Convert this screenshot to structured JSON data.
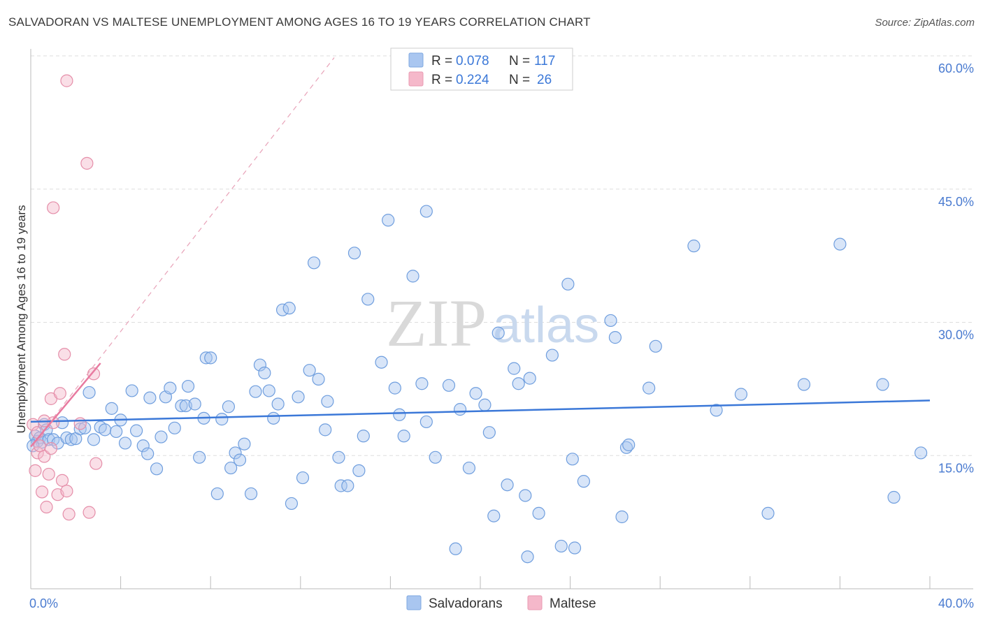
{
  "header": {
    "title": "SALVADORAN VS MALTESE UNEMPLOYMENT AMONG AGES 16 TO 19 YEARS CORRELATION CHART",
    "source": "Source: ZipAtlas.com"
  },
  "watermark": {
    "zip": "ZIP",
    "atlas": "atlas"
  },
  "legend": {
    "rows": [
      {
        "r_label": "R =",
        "r_value": "0.078",
        "n_label": "N =",
        "n_value": "117",
        "color": "#a9c6f0"
      },
      {
        "r_label": "R =",
        "r_value": "0.224",
        "n_label": "N =",
        "n_value": "26",
        "color": "#f5b8ca"
      }
    ]
  },
  "bottom_legend": {
    "salvadorans": "Salvadorans",
    "maltese": "Maltese"
  },
  "colors": {
    "blue": "#3b78d8",
    "blue_fill": "#a9c6f0",
    "pink": "#e87aa0",
    "pink_fill": "#f5b8ca",
    "grid": "#dddddd"
  },
  "chart_data": {
    "type": "scatter",
    "xlabel": "",
    "ylabel": "Unemployment Among Ages 16 to 19 years",
    "xlim": [
      0,
      40
    ],
    "ylim": [
      0,
      60
    ],
    "x_tick_labels": [
      "0.0%",
      "40.0%"
    ],
    "y_ticks": [
      15,
      30,
      45,
      60
    ],
    "y_tick_labels": [
      "15.0%",
      "30.0%",
      "45.0%",
      "60.0%"
    ],
    "grid": true,
    "series": [
      {
        "name": "Salvadorans",
        "r": 0.078,
        "n": 117,
        "trend": {
          "x": [
            0,
            40
          ],
          "y": [
            18.8,
            21.2
          ]
        },
        "points": [
          [
            0.2,
            17.2
          ],
          [
            0.3,
            16.6
          ],
          [
            0.4,
            17.0
          ],
          [
            0.5,
            16.5
          ],
          [
            0.6,
            18.5
          ],
          [
            0.7,
            17.9
          ],
          [
            0.8,
            16.8
          ],
          [
            1.0,
            16.8
          ],
          [
            1.2,
            16.4
          ],
          [
            1.4,
            18.7
          ],
          [
            1.6,
            17.0
          ],
          [
            1.8,
            16.8
          ],
          [
            2.0,
            16.9
          ],
          [
            2.2,
            18.0
          ],
          [
            2.4,
            18.1
          ],
          [
            2.6,
            22.1
          ],
          [
            2.8,
            16.8
          ],
          [
            3.1,
            18.2
          ],
          [
            3.3,
            17.9
          ],
          [
            3.6,
            20.3
          ],
          [
            3.8,
            17.7
          ],
          [
            4.0,
            19.0
          ],
          [
            4.2,
            16.4
          ],
          [
            4.5,
            22.3
          ],
          [
            4.7,
            17.8
          ],
          [
            5.0,
            16.1
          ],
          [
            5.2,
            15.2
          ],
          [
            5.3,
            21.5
          ],
          [
            5.6,
            13.5
          ],
          [
            5.8,
            17.1
          ],
          [
            6.0,
            21.6
          ],
          [
            6.2,
            22.6
          ],
          [
            6.4,
            18.1
          ],
          [
            6.7,
            20.6
          ],
          [
            6.9,
            20.6
          ],
          [
            7.0,
            22.8
          ],
          [
            7.3,
            20.8
          ],
          [
            7.5,
            14.8
          ],
          [
            7.7,
            19.2
          ],
          [
            7.8,
            26.0
          ],
          [
            8.0,
            26.0
          ],
          [
            8.3,
            10.7
          ],
          [
            8.5,
            19.1
          ],
          [
            8.8,
            20.5
          ],
          [
            8.9,
            13.6
          ],
          [
            9.1,
            15.3
          ],
          [
            9.3,
            14.5
          ],
          [
            9.5,
            16.3
          ],
          [
            9.8,
            10.7
          ],
          [
            10.0,
            22.2
          ],
          [
            10.2,
            25.2
          ],
          [
            10.4,
            24.3
          ],
          [
            10.6,
            22.3
          ],
          [
            10.8,
            19.2
          ],
          [
            11.0,
            20.8
          ],
          [
            11.2,
            31.4
          ],
          [
            11.5,
            31.6
          ],
          [
            11.6,
            9.6
          ],
          [
            11.9,
            21.6
          ],
          [
            12.1,
            12.5
          ],
          [
            12.4,
            24.6
          ],
          [
            12.6,
            36.7
          ],
          [
            12.8,
            23.6
          ],
          [
            13.1,
            17.9
          ],
          [
            13.2,
            21.1
          ],
          [
            13.7,
            14.8
          ],
          [
            13.8,
            11.6
          ],
          [
            14.1,
            11.6
          ],
          [
            14.4,
            37.8
          ],
          [
            14.6,
            13.3
          ],
          [
            14.8,
            17.2
          ],
          [
            15.0,
            32.6
          ],
          [
            15.6,
            25.5
          ],
          [
            15.9,
            41.5
          ],
          [
            16.2,
            22.6
          ],
          [
            16.4,
            19.6
          ],
          [
            16.6,
            17.2
          ],
          [
            17.0,
            35.2
          ],
          [
            17.4,
            23.1
          ],
          [
            17.6,
            42.5
          ],
          [
            17.6,
            18.8
          ],
          [
            18.0,
            14.8
          ],
          [
            18.6,
            22.9
          ],
          [
            18.9,
            4.5
          ],
          [
            19.1,
            20.2
          ],
          [
            19.5,
            13.6
          ],
          [
            19.8,
            22.0
          ],
          [
            20.2,
            20.7
          ],
          [
            20.4,
            17.6
          ],
          [
            20.6,
            8.2
          ],
          [
            20.8,
            28.8
          ],
          [
            21.2,
            11.7
          ],
          [
            21.5,
            24.8
          ],
          [
            21.7,
            23.1
          ],
          [
            22.0,
            10.5
          ],
          [
            22.1,
            3.6
          ],
          [
            22.2,
            23.7
          ],
          [
            22.6,
            8.5
          ],
          [
            23.2,
            26.3
          ],
          [
            23.6,
            4.8
          ],
          [
            23.9,
            34.3
          ],
          [
            24.1,
            14.6
          ],
          [
            24.2,
            4.6
          ],
          [
            24.6,
            12.1
          ],
          [
            25.8,
            30.2
          ],
          [
            26.0,
            28.3
          ],
          [
            26.3,
            8.1
          ],
          [
            26.5,
            15.9
          ],
          [
            26.6,
            16.2
          ],
          [
            27.5,
            22.6
          ],
          [
            27.8,
            27.3
          ],
          [
            29.5,
            38.6
          ],
          [
            30.5,
            20.1
          ],
          [
            31.6,
            21.9
          ],
          [
            32.8,
            8.5
          ],
          [
            34.4,
            23.0
          ],
          [
            36.0,
            38.8
          ],
          [
            37.9,
            23.0
          ],
          [
            38.4,
            10.3
          ],
          [
            39.6,
            15.3
          ],
          [
            0.1,
            16.1
          ]
        ]
      },
      {
        "name": "Maltese",
        "r": 0.224,
        "n": 26,
        "trend": {
          "x": [
            0,
            3.1
          ],
          "y": [
            16.0,
            25.4
          ]
        },
        "trend_extension": {
          "x": [
            0,
            13.5
          ],
          "y": [
            16.0,
            59.8
          ]
        },
        "points": [
          [
            0.1,
            18.5
          ],
          [
            0.2,
            13.3
          ],
          [
            0.3,
            15.3
          ],
          [
            0.4,
            16.1
          ],
          [
            0.5,
            10.9
          ],
          [
            0.6,
            14.9
          ],
          [
            0.7,
            9.2
          ],
          [
            0.8,
            12.9
          ],
          [
            0.9,
            15.8
          ],
          [
            0.9,
            21.4
          ],
          [
            1.0,
            18.7
          ],
          [
            1.2,
            10.6
          ],
          [
            1.3,
            22.0
          ],
          [
            1.4,
            12.2
          ],
          [
            1.5,
            26.4
          ],
          [
            1.6,
            11.0
          ],
          [
            1.6,
            57.2
          ],
          [
            1.7,
            8.4
          ],
          [
            2.2,
            18.6
          ],
          [
            2.5,
            47.9
          ],
          [
            2.6,
            8.6
          ],
          [
            2.8,
            24.2
          ],
          [
            2.9,
            14.1
          ],
          [
            1.0,
            42.9
          ],
          [
            0.3,
            17.6
          ],
          [
            0.6,
            18.9
          ]
        ]
      }
    ]
  }
}
